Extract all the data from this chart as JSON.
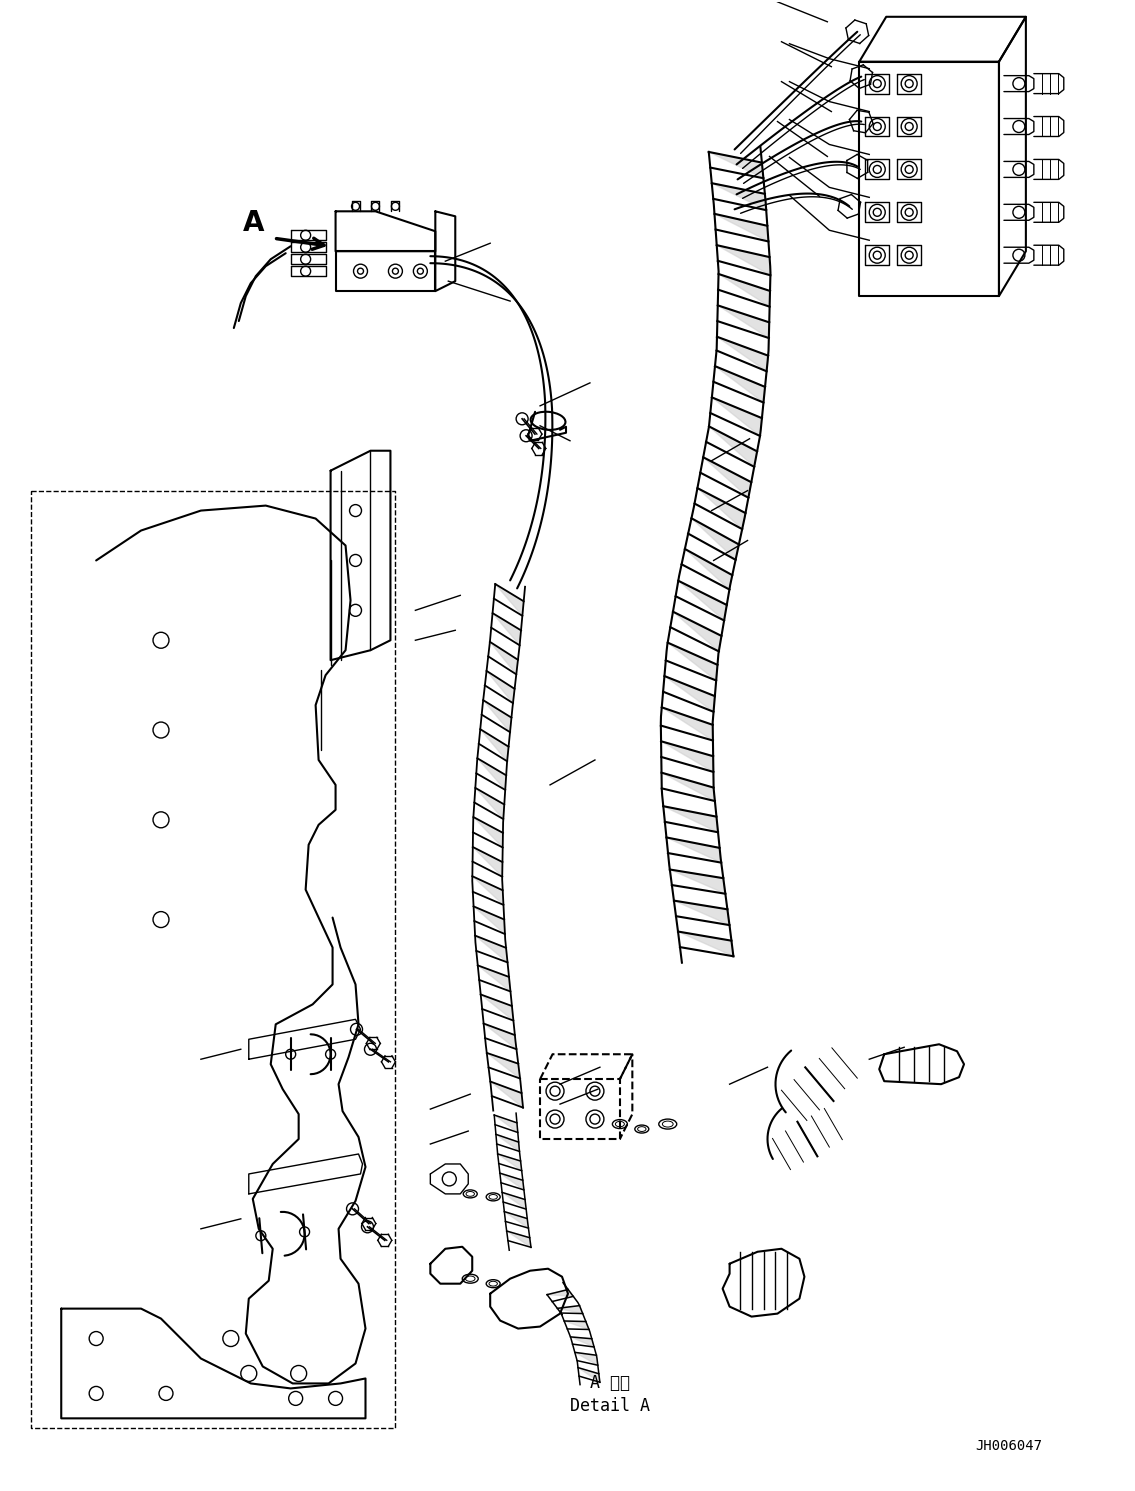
{
  "background_color": "#ffffff",
  "line_color": "#000000",
  "figure_width": 11.35,
  "figure_height": 14.91,
  "dpi": 100,
  "part_number": "JH006047",
  "detail_text_jp": "A 詳細",
  "detail_text_en": "Detail A"
}
